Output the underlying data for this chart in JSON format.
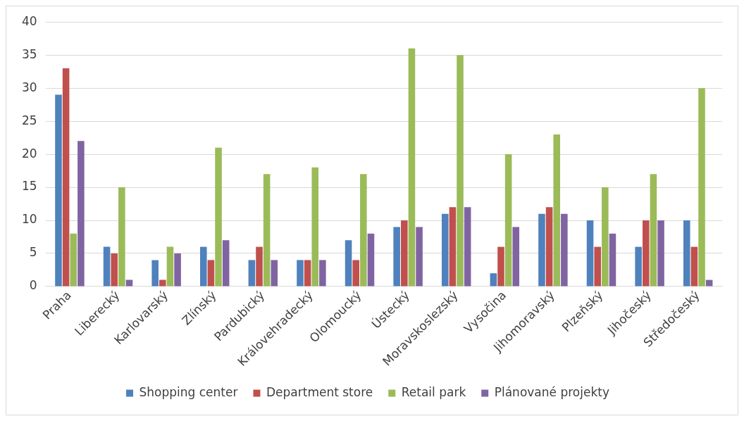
{
  "chart_data": {
    "type": "bar",
    "categories": [
      "Praha",
      "Liberecký",
      "Karlovarský",
      "Zlínský",
      "Pardubický",
      "Královehradecký",
      "Olomoucký",
      "Ústecký",
      "Moravskoslezský",
      "Vysočina",
      "Jihomoravský",
      "Plzeňský",
      "Jihočeský",
      "Středočeský"
    ],
    "series": [
      {
        "name": "Shopping center",
        "color": "#4f81bd",
        "values": [
          29,
          6,
          4,
          6,
          4,
          4,
          7,
          9,
          11,
          2,
          11,
          10,
          6,
          10
        ]
      },
      {
        "name": "Department store",
        "color": "#c0504d",
        "values": [
          33,
          5,
          1,
          4,
          6,
          4,
          4,
          10,
          12,
          6,
          12,
          6,
          10,
          6
        ]
      },
      {
        "name": "Retail park",
        "color": "#9bbb59",
        "values": [
          8,
          15,
          6,
          21,
          17,
          18,
          17,
          36,
          35,
          20,
          23,
          15,
          17,
          30
        ]
      },
      {
        "name": "Plánované projekty",
        "color": "#8064a2",
        "values": [
          22,
          1,
          5,
          7,
          4,
          4,
          8,
          9,
          12,
          9,
          11,
          8,
          10,
          1
        ]
      }
    ],
    "ylim": [
      0,
      40
    ],
    "yticks": [
      0,
      5,
      10,
      15,
      20,
      25,
      30,
      35,
      40
    ],
    "grid": "y",
    "legend": "bottom"
  }
}
